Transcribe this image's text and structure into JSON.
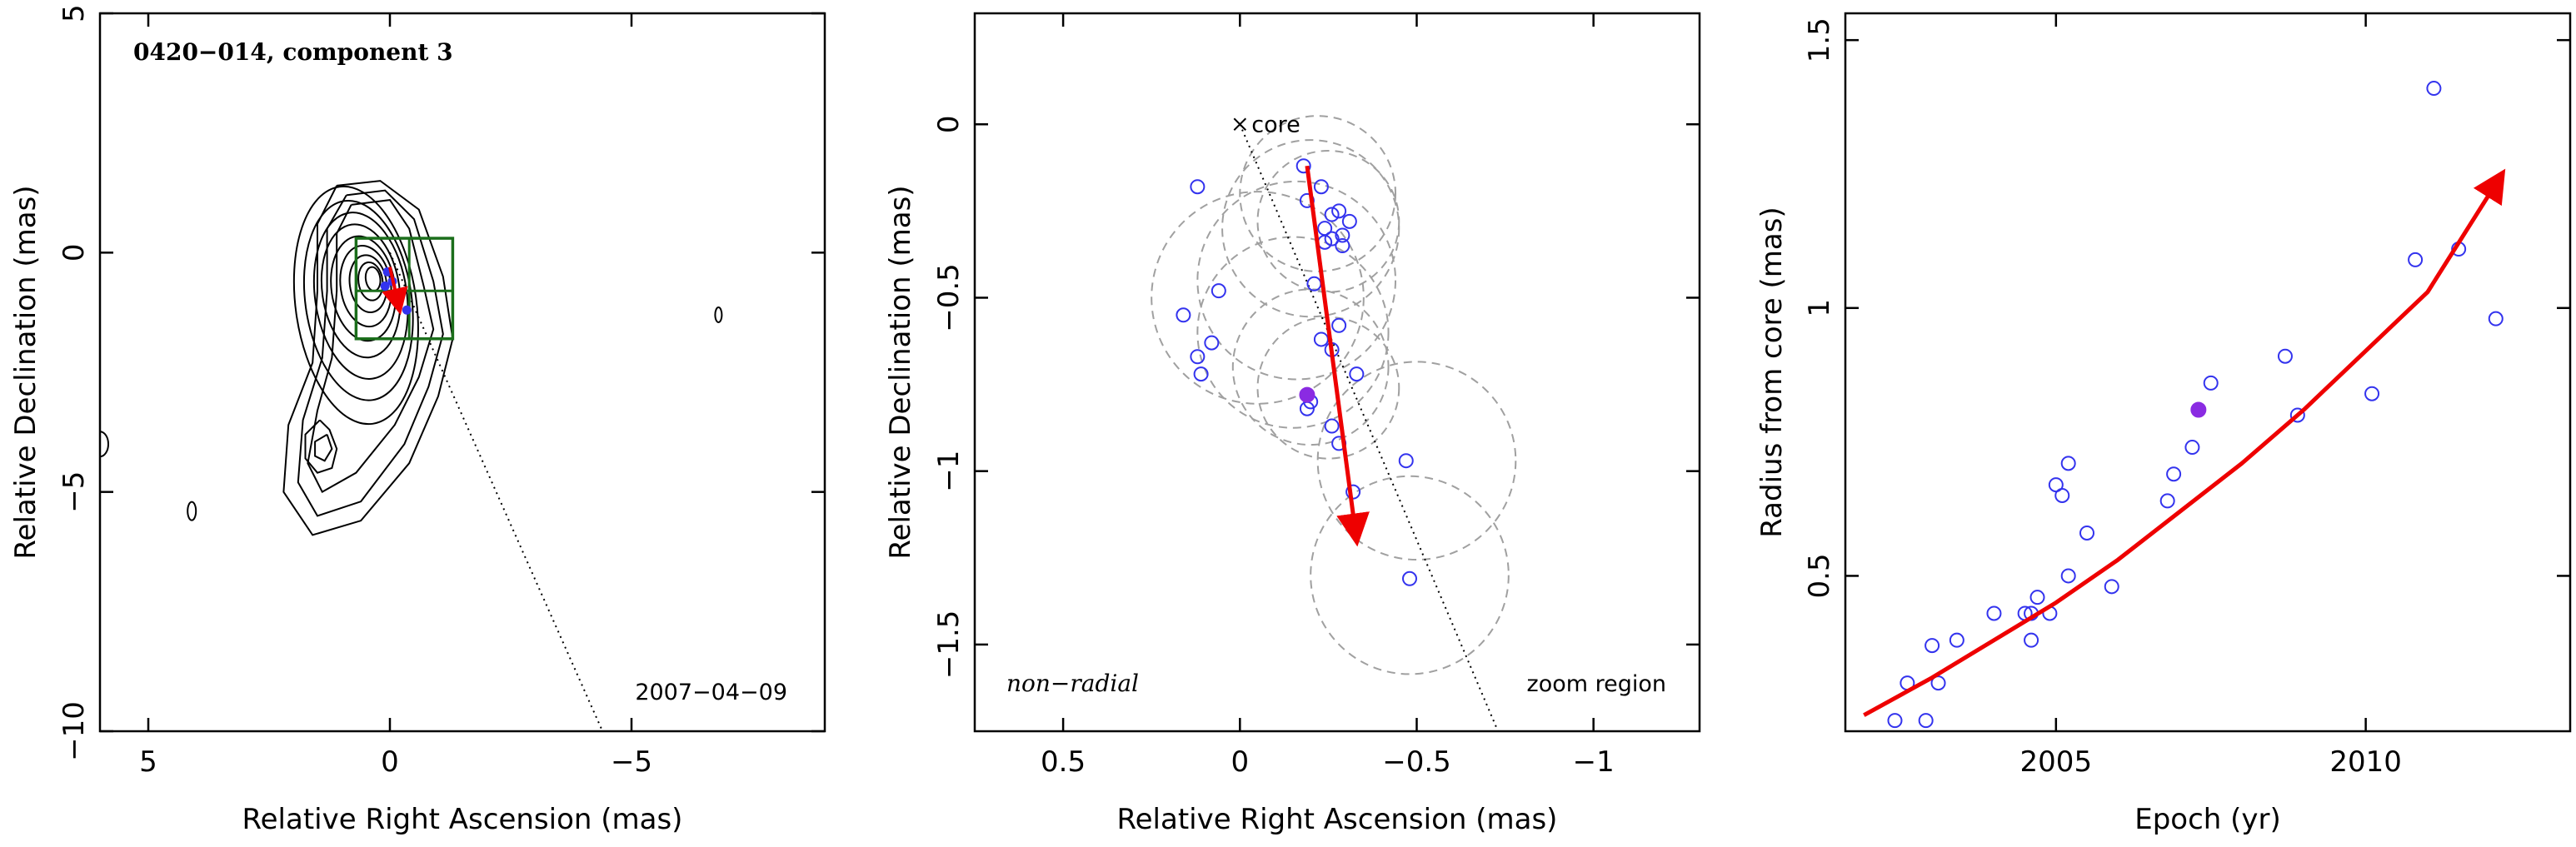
{
  "chart_data": [
    {
      "type": "contour",
      "panel": "map",
      "title": "0420−014, component 3",
      "date_label": "2007−04−09",
      "xlabel": "Relative Right Ascension (mas)",
      "ylabel": "Relative Declination (mas)",
      "xlim": [
        6,
        -9
      ],
      "ylim": [
        -10,
        5
      ],
      "xticks": [
        5,
        0,
        -5
      ],
      "yticks": [
        5,
        0,
        -5,
        -10
      ],
      "xtick_labels": [
        "5",
        "0",
        "−5"
      ],
      "ytick_labels": [
        "5",
        "0",
        "−5",
        "−10"
      ],
      "trajectory_line": {
        "from": [
          0,
          0
        ],
        "to": [
          -4.4,
          -10
        ]
      },
      "zoom_box": {
        "x": [
          -1.3,
          0.7
        ],
        "y": [
          -1.8,
          0.3
        ],
        "divisions": [
          -0.4,
          -0.8
        ]
      },
      "arrow": {
        "from": [
          0.0,
          -0.3
        ],
        "to": [
          -0.2,
          -1.2
        ],
        "color": "#ee0000"
      },
      "colors": {
        "contour": "#000000",
        "zoom_box": "#1b6e1b",
        "arrow": "#ee0000",
        "points": "#3333ee"
      }
    },
    {
      "type": "scatter",
      "panel": "zoom",
      "annotation": "non−radial",
      "core_label": "core",
      "zoom_label": "zoom region",
      "xlabel": "Relative Right Ascension (mas)",
      "ylabel": "Relative Declination (mas)",
      "xlim": [
        0.75,
        -1.3
      ],
      "ylim": [
        -1.75,
        0.32
      ],
      "xticks": [
        0.5,
        0,
        -0.5,
        -1
      ],
      "yticks": [
        0,
        -0.5,
        -1,
        -1.5
      ],
      "xtick_labels": [
        "0.5",
        "0",
        "−0.5",
        "−1"
      ],
      "ytick_labels": [
        "0",
        "−0.5",
        "−1",
        "−1.5"
      ],
      "core": [
        0,
        0
      ],
      "trajectory_line": {
        "from": [
          0,
          0
        ],
        "to": [
          -0.73,
          -1.75
        ]
      },
      "points": [
        {
          "x": -0.18,
          "y": -0.12
        },
        {
          "x": -0.23,
          "y": -0.18
        },
        {
          "x": 0.12,
          "y": -0.18
        },
        {
          "x": -0.19,
          "y": -0.22
        },
        {
          "x": -0.28,
          "y": -0.25
        },
        {
          "x": -0.26,
          "y": -0.26
        },
        {
          "x": -0.31,
          "y": -0.28
        },
        {
          "x": -0.24,
          "y": -0.3
        },
        {
          "x": -0.29,
          "y": -0.32
        },
        {
          "x": -0.26,
          "y": -0.33
        },
        {
          "x": -0.24,
          "y": -0.34
        },
        {
          "x": -0.29,
          "y": -0.35
        },
        {
          "x": -0.21,
          "y": -0.46
        },
        {
          "x": 0.06,
          "y": -0.48
        },
        {
          "x": 0.16,
          "y": -0.55
        },
        {
          "x": -0.28,
          "y": -0.58
        },
        {
          "x": -0.23,
          "y": -0.62
        },
        {
          "x": 0.08,
          "y": -0.63
        },
        {
          "x": -0.26,
          "y": -0.65
        },
        {
          "x": 0.12,
          "y": -0.67
        },
        {
          "x": 0.11,
          "y": -0.72
        },
        {
          "x": -0.33,
          "y": -0.72
        },
        {
          "x": -0.2,
          "y": -0.8
        },
        {
          "x": -0.19,
          "y": -0.82
        },
        {
          "x": -0.26,
          "y": -0.87
        },
        {
          "x": -0.28,
          "y": -0.92
        },
        {
          "x": -0.47,
          "y": -0.97
        },
        {
          "x": -0.32,
          "y": -1.06
        },
        {
          "x": -0.48,
          "y": -1.31
        }
      ],
      "highlight_point": {
        "x": -0.19,
        "y": -0.78
      },
      "circles": [
        {
          "x": -0.22,
          "y": -0.2,
          "r": 0.22
        },
        {
          "x": -0.25,
          "y": -0.28,
          "r": 0.2
        },
        {
          "x": -0.2,
          "y": -0.3,
          "r": 0.25
        },
        {
          "x": -0.16,
          "y": -0.45,
          "r": 0.28
        },
        {
          "x": -0.05,
          "y": -0.5,
          "r": 0.3
        },
        {
          "x": -0.15,
          "y": -0.6,
          "r": 0.27
        },
        {
          "x": -0.2,
          "y": -0.7,
          "r": 0.22
        },
        {
          "x": -0.25,
          "y": -0.76,
          "r": 0.2
        },
        {
          "x": -0.5,
          "y": -0.97,
          "r": 0.28
        },
        {
          "x": -0.48,
          "y": -1.3,
          "r": 0.28
        }
      ],
      "arrow": {
        "from": [
          -0.19,
          -0.12
        ],
        "to": [
          -0.33,
          -1.2
        ],
        "color": "#ee0000"
      },
      "colors": {
        "points": "#3333ee",
        "highlight": "#8a2be2",
        "circles": "#a0a0a0",
        "arrow": "#ee0000"
      }
    },
    {
      "type": "scatter",
      "panel": "radius",
      "xlabel": "Epoch (yr)",
      "ylabel": "Radius from core (mas)",
      "xlim": [
        2001.6,
        2013.3
      ],
      "ylim": [
        0.21,
        1.55
      ],
      "xticks": [
        2005,
        2010
      ],
      "yticks": [
        0.5,
        1,
        1.5
      ],
      "xtick_labels": [
        "2005",
        "2010"
      ],
      "ytick_labels": [
        "0.5",
        "1",
        "1.5"
      ],
      "points": [
        {
          "x": 2002.4,
          "y": 0.23
        },
        {
          "x": 2002.6,
          "y": 0.3
        },
        {
          "x": 2002.9,
          "y": 0.23
        },
        {
          "x": 2003.0,
          "y": 0.37
        },
        {
          "x": 2003.1,
          "y": 0.3
        },
        {
          "x": 2003.4,
          "y": 0.38
        },
        {
          "x": 2004.0,
          "y": 0.43
        },
        {
          "x": 2004.5,
          "y": 0.43
        },
        {
          "x": 2004.6,
          "y": 0.38
        },
        {
          "x": 2004.6,
          "y": 0.43
        },
        {
          "x": 2004.7,
          "y": 0.46
        },
        {
          "x": 2004.9,
          "y": 0.43
        },
        {
          "x": 2005.0,
          "y": 0.67
        },
        {
          "x": 2005.1,
          "y": 0.65
        },
        {
          "x": 2005.2,
          "y": 0.5
        },
        {
          "x": 2005.2,
          "y": 0.71
        },
        {
          "x": 2005.5,
          "y": 0.58
        },
        {
          "x": 2005.9,
          "y": 0.48
        },
        {
          "x": 2006.8,
          "y": 0.64
        },
        {
          "x": 2006.9,
          "y": 0.69
        },
        {
          "x": 2007.2,
          "y": 0.74
        },
        {
          "x": 2007.5,
          "y": 0.86
        },
        {
          "x": 2008.7,
          "y": 0.91
        },
        {
          "x": 2008.9,
          "y": 0.8
        },
        {
          "x": 2010.1,
          "y": 0.84
        },
        {
          "x": 2010.8,
          "y": 1.09
        },
        {
          "x": 2011.1,
          "y": 1.41
        },
        {
          "x": 2011.5,
          "y": 1.11
        },
        {
          "x": 2012.1,
          "y": 0.98
        }
      ],
      "highlight_point": {
        "x": 2007.3,
        "y": 0.81
      },
      "fit_curve": {
        "x": [
          2001.9,
          2003,
          2004,
          2005,
          2006,
          2007,
          2008,
          2009,
          2010,
          2011,
          2012.2
        ],
        "y": [
          0.24,
          0.31,
          0.38,
          0.45,
          0.53,
          0.62,
          0.71,
          0.81,
          0.92,
          1.03,
          1.25
        ]
      },
      "colors": {
        "points": "#3333ee",
        "highlight": "#8a2be2",
        "fit": "#ee0000"
      }
    }
  ]
}
